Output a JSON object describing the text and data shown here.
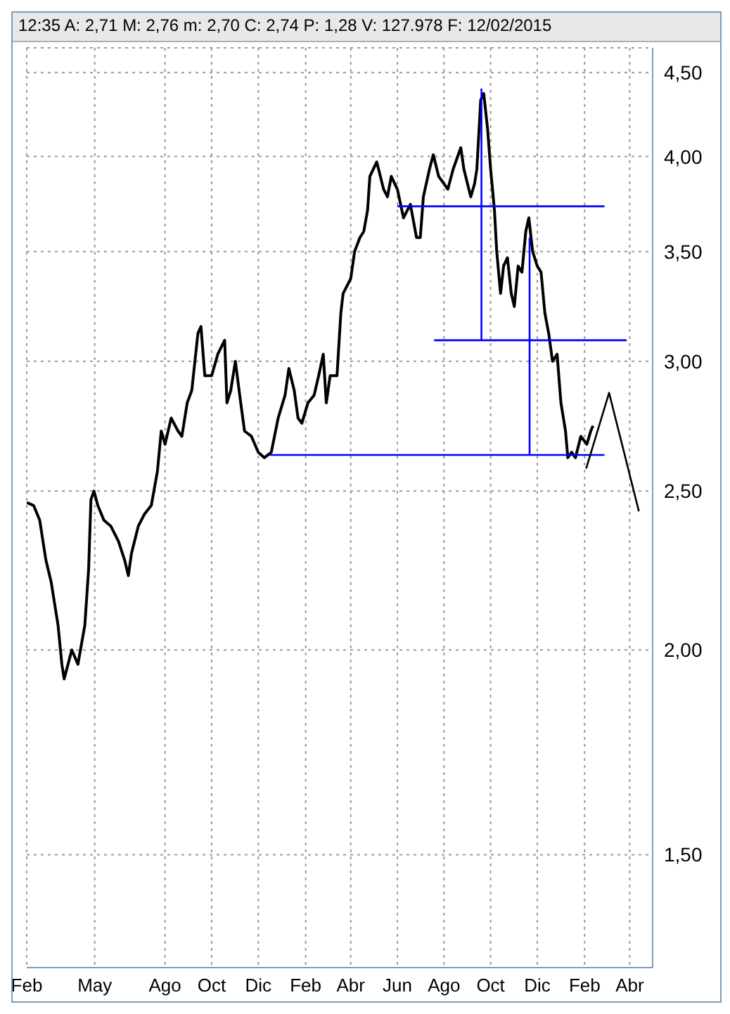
{
  "chart_data": {
    "type": "line",
    "annotations": [
      "12:35 A: 2,71 M: 2,76 m: 2,70 C: 2,74 P: 1,28 V: 127.978 F: 12/02/2015"
    ],
    "xlim": [
      "2013-02-01",
      "2015-05-01"
    ],
    "xticks": [
      {
        "value": "2013-02-01",
        "label": "Feb"
      },
      {
        "value": "2013-05-01",
        "label": "May"
      },
      {
        "value": "2013-08-01",
        "label": "Ago"
      },
      {
        "value": "2013-10-01",
        "label": "Oct"
      },
      {
        "value": "2013-12-01",
        "label": "Dic"
      },
      {
        "value": "2014-02-01",
        "label": "Feb"
      },
      {
        "value": "2014-04-01",
        "label": "Abr"
      },
      {
        "value": "2014-06-01",
        "label": "Jun"
      },
      {
        "value": "2014-08-01",
        "label": "Ago"
      },
      {
        "value": "2014-10-01",
        "label": "Oct"
      },
      {
        "value": "2014-12-01",
        "label": "Dic"
      },
      {
        "value": "2015-02-01",
        "label": "Feb"
      },
      {
        "value": "2015-04-01",
        "label": "Abr"
      }
    ],
    "ylim": [
      1.28,
      4.66
    ],
    "yticks": [
      {
        "value": 1.5,
        "label": "1,50"
      },
      {
        "value": 2,
        "label": "2,00"
      },
      {
        "value": 2.5,
        "label": "2,50"
      },
      {
        "value": 3,
        "label": "3,00"
      },
      {
        "value": 3.5,
        "label": "3,50"
      },
      {
        "value": 4,
        "label": "4,00"
      },
      {
        "value": 4.5,
        "label": "4,50"
      }
    ],
    "log": "y",
    "grid": true,
    "marker": "none",
    "series": [
      {
        "color": "#000000",
        "x": [
          "2013-02-01",
          "2013-02-10",
          "2013-02-18",
          "2013-02-26",
          "2013-03-05",
          "2013-03-14",
          "2013-03-19",
          "2013-03-22",
          "2013-04-01",
          "2013-04-09",
          "2013-04-18",
          "2013-04-23",
          "2013-04-26",
          "2013-04-30",
          "2013-05-05",
          "2013-05-13",
          "2013-05-22",
          "2013-06-01",
          "2013-06-09",
          "2013-06-14",
          "2013-06-18",
          "2013-06-27",
          "2013-07-05",
          "2013-07-14",
          "2013-07-22",
          "2013-07-27",
          "2013-08-01",
          "2013-08-09",
          "2013-08-18",
          "2013-08-23",
          "2013-08-30",
          "2013-09-05",
          "2013-09-13",
          "2013-09-17",
          "2013-09-22",
          "2013-10-01",
          "2013-10-09",
          "2013-10-18",
          "2013-10-21",
          "2013-10-26",
          "2013-11-01",
          "2013-11-08",
          "2013-11-13",
          "2013-11-22",
          "2013-12-01",
          "2013-12-09",
          "2013-12-18",
          "2013-12-27",
          "2014-01-05",
          "2014-01-10",
          "2014-01-17",
          "2014-01-22",
          "2014-01-27",
          "2014-02-04",
          "2014-02-12",
          "2014-02-18",
          "2014-02-24",
          "2014-02-28",
          "2014-03-05",
          "2014-03-14",
          "2014-03-19",
          "2014-03-22",
          "2014-04-01",
          "2014-04-06",
          "2014-04-13",
          "2014-04-18",
          "2014-04-23",
          "2014-04-26",
          "2014-05-05",
          "2014-05-14",
          "2014-05-19",
          "2014-05-24",
          "2014-06-01",
          "2014-06-09",
          "2014-06-18",
          "2014-06-26",
          "2014-07-01",
          "2014-07-05",
          "2014-07-13",
          "2014-07-18",
          "2014-07-25",
          "2014-08-01",
          "2014-08-06",
          "2014-08-13",
          "2014-08-23",
          "2014-08-27",
          "2014-09-05",
          "2014-09-10",
          "2014-09-13",
          "2014-09-18",
          "2014-09-22",
          "2014-09-27",
          "2014-10-01",
          "2014-10-06",
          "2014-10-09",
          "2014-10-14",
          "2014-10-18",
          "2014-10-23",
          "2014-10-28",
          "2014-11-01",
          "2014-11-06",
          "2014-11-11",
          "2014-11-16",
          "2014-11-20",
          "2014-11-25",
          "2014-12-01",
          "2014-12-06",
          "2014-12-11",
          "2014-12-16",
          "2014-12-21",
          "2014-12-27",
          "2015-01-01",
          "2015-01-07",
          "2015-01-10",
          "2015-01-15",
          "2015-01-20",
          "2015-01-27",
          "2015-02-04",
          "2015-02-09",
          "2015-02-12"
        ],
        "values": [
          2.46,
          2.45,
          2.4,
          2.27,
          2.2,
          2.07,
          1.96,
          1.92,
          2.0,
          1.96,
          2.07,
          2.24,
          2.47,
          2.5,
          2.45,
          2.4,
          2.38,
          2.33,
          2.27,
          2.22,
          2.29,
          2.38,
          2.42,
          2.45,
          2.57,
          2.72,
          2.67,
          2.77,
          2.72,
          2.7,
          2.83,
          2.88,
          3.12,
          3.15,
          2.94,
          2.94,
          3.03,
          3.09,
          2.83,
          2.88,
          3.0,
          2.83,
          2.72,
          2.7,
          2.64,
          2.62,
          2.64,
          2.77,
          2.86,
          2.97,
          2.88,
          2.77,
          2.75,
          2.83,
          2.86,
          2.94,
          3.03,
          2.83,
          2.94,
          2.94,
          3.21,
          3.3,
          3.37,
          3.5,
          3.57,
          3.6,
          3.71,
          3.89,
          3.97,
          3.82,
          3.78,
          3.89,
          3.82,
          3.67,
          3.74,
          3.57,
          3.57,
          3.78,
          3.93,
          4.01,
          3.89,
          3.85,
          3.82,
          3.93,
          4.05,
          3.93,
          3.78,
          3.85,
          3.93,
          4.33,
          4.37,
          4.16,
          3.93,
          3.71,
          3.5,
          3.3,
          3.43,
          3.47,
          3.3,
          3.24,
          3.43,
          3.4,
          3.6,
          3.67,
          3.5,
          3.43,
          3.4,
          3.21,
          3.12,
          3.0,
          3.03,
          2.83,
          2.72,
          2.62,
          2.64,
          2.62,
          2.7,
          2.67,
          2.72,
          2.74
        ]
      },
      {
        "color": "#0000ff",
        "x": [
          "2014-06-01",
          "2015-02-27"
        ],
        "values": [
          3.73,
          3.73
        ]
      },
      {
        "color": "#0000ff",
        "x": [
          "2014-07-19",
          "2015-03-28"
        ],
        "values": [
          3.09,
          3.09
        ]
      },
      {
        "color": "#0000ff",
        "x": [
          "2013-12-15",
          "2015-02-27"
        ],
        "values": [
          2.63,
          2.63
        ]
      },
      {
        "color": "#0000ff",
        "x": [
          "2014-09-19",
          "2014-09-19"
        ],
        "values": [
          4.4,
          3.09
        ]
      },
      {
        "color": "#0000ff",
        "x": [
          "2014-11-21",
          "2014-11-21"
        ],
        "values": [
          3.57,
          2.63
        ]
      },
      {
        "color": "#000000",
        "x": [
          "2015-02-03",
          "2015-03-05",
          "2015-04-13"
        ],
        "values": [
          2.58,
          2.87,
          2.43
        ]
      }
    ]
  }
}
